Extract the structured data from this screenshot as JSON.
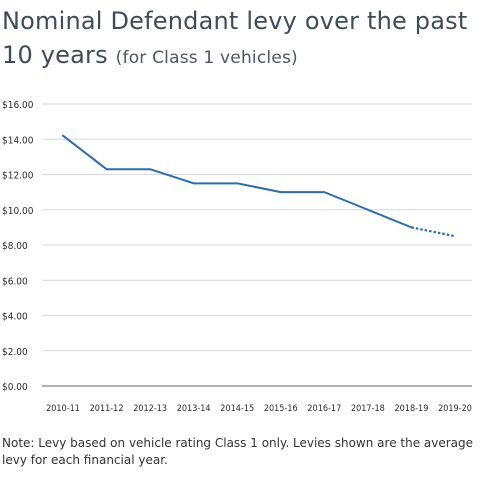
{
  "header": {
    "title_main": "Nominal Defendant levy over the past 10 years",
    "title_sub": "(for Class 1 vehicles)"
  },
  "note": "Note: Levy based on vehicle rating Class 1 only. Levies shown are the average levy for each financial year.",
  "colors": {
    "line": "#2b6cb0",
    "grid": "#d9d9d9",
    "axis": "#666666",
    "text": "#3d4a57"
  },
  "chart_data": {
    "type": "line",
    "title": "Nominal Defendant levy over the past 10 years (for Class 1 vehicles)",
    "xlabel": "",
    "ylabel": "",
    "categories": [
      "2010-11",
      "2011-12",
      "2012-13",
      "2013-14",
      "2014-15",
      "2015-16",
      "2016-17",
      "2017-18",
      "2018-19",
      "2019-20"
    ],
    "series": [
      {
        "values": [
          14.2,
          12.3,
          12.3,
          11.5,
          11.5,
          11.0,
          11.0,
          10.0,
          9.0,
          8.5
        ],
        "dashed_from_index": 8
      }
    ],
    "ylim": [
      0,
      16
    ],
    "yticks": [
      0,
      2,
      4,
      6,
      8,
      10,
      12,
      14,
      16
    ],
    "ytick_labels": [
      "$0.00",
      "$2.00",
      "$4.00",
      "$6.00",
      "$8.00",
      "$10.00",
      "$12.00",
      "$14.00",
      "$16.00"
    ],
    "grid": true,
    "legend": "none"
  }
}
